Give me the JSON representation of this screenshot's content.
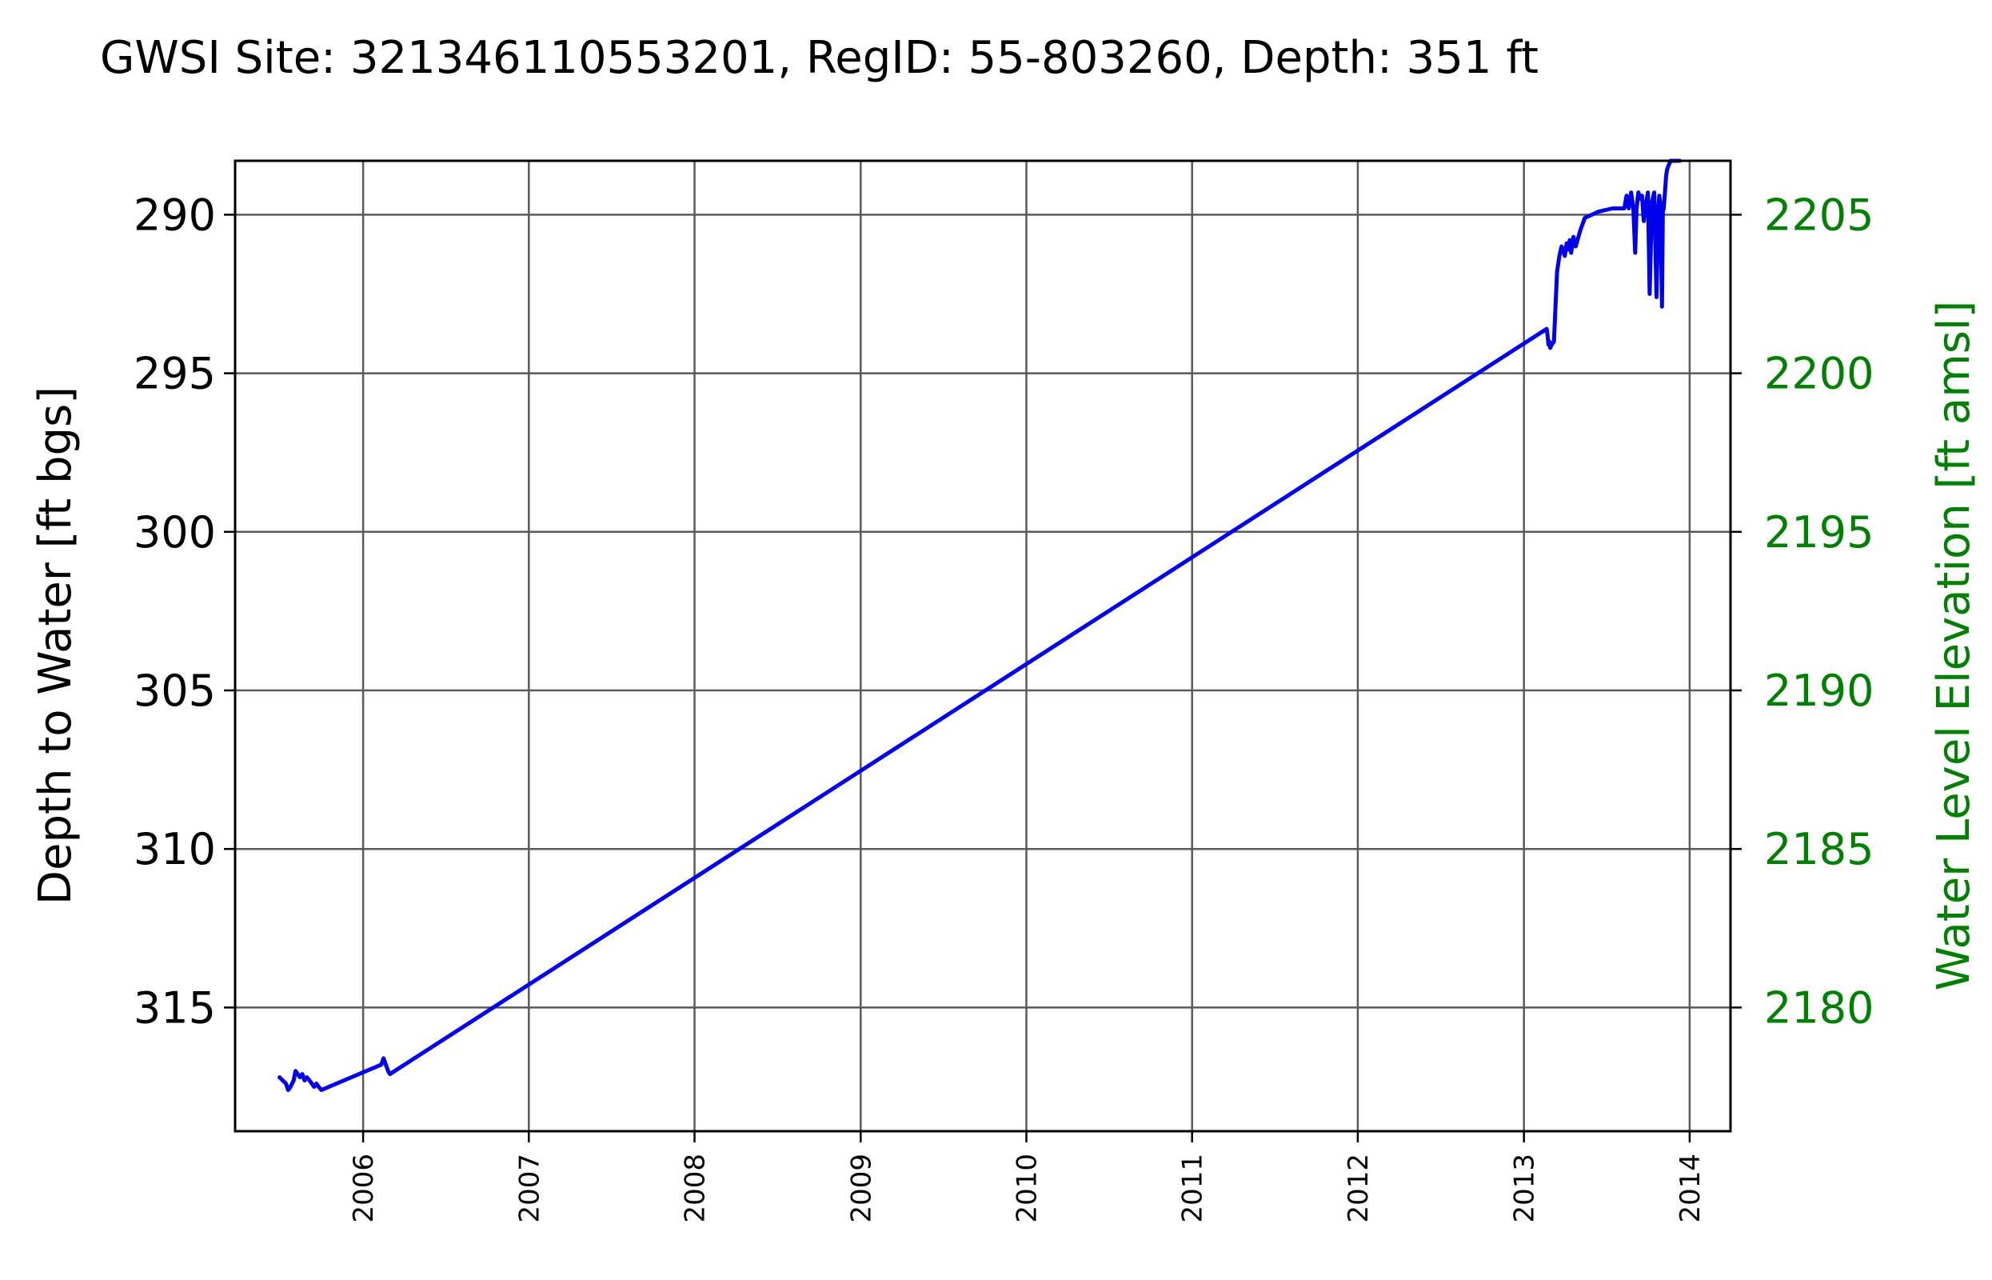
{
  "chart_data": {
    "type": "line",
    "title": "GWSI Site: 321346110553201, RegID: 55-803260, Depth: 351 ft",
    "ylabel": "Depth to Water [ft bgs]",
    "ylabel_right": "Water Level Elevation [ft amsl]",
    "xlabel": "",
    "y_inverted": true,
    "ylim": [
      288.3,
      318.9
    ],
    "yticks": [
      290,
      295,
      300,
      305,
      310,
      315
    ],
    "yticks_right": [
      2205,
      2200,
      2195,
      2190,
      2185,
      2180
    ],
    "right_axis_offset": 2495,
    "xlim": [
      "2005-03-25",
      "2014-04-01"
    ],
    "xticks": [
      "2006",
      "2007",
      "2008",
      "2009",
      "2010",
      "2011",
      "2012",
      "2013",
      "2014"
    ],
    "grid": true,
    "colors": {
      "series": "#0000ee",
      "right_axis": "#008000",
      "grid": "#5a5a5a"
    },
    "series": [
      {
        "x": [
          "2005-07-01",
          "2005-07-08",
          "2005-07-15",
          "2005-07-20",
          "2005-07-25",
          "2005-08-01",
          "2005-08-05",
          "2005-08-10",
          "2005-08-15",
          "2005-08-20",
          "2005-08-25",
          "2005-08-30",
          "2005-09-05",
          "2005-09-10",
          "2005-09-15",
          "2005-09-20",
          "2005-09-25",
          "2005-10-01",
          "2006-02-10",
          "2006-02-15",
          "2006-02-20",
          "2006-02-25",
          "2006-03-01",
          "2013-02-20",
          "2013-02-22",
          "2013-02-24",
          "2013-02-26",
          "2013-02-28",
          "2013-03-03",
          "2013-03-08",
          "2013-03-15",
          "2013-03-20",
          "2013-03-25",
          "2013-04-01",
          "2013-04-05",
          "2013-04-08",
          "2013-04-12",
          "2013-04-15",
          "2013-04-20",
          "2013-04-25",
          "2013-05-05",
          "2013-05-15",
          "2013-06-15",
          "2013-07-15",
          "2013-08-10",
          "2013-08-15",
          "2013-08-20",
          "2013-08-25",
          "2013-08-30",
          "2013-09-03",
          "2013-09-06",
          "2013-09-10",
          "2013-09-14",
          "2013-09-18",
          "2013-09-22",
          "2013-09-26",
          "2013-10-01",
          "2013-10-05",
          "2013-10-10",
          "2013-10-15",
          "2013-10-20",
          "2013-10-24",
          "2013-10-26",
          "2013-10-28",
          "2013-10-30",
          "2013-11-01",
          "2013-11-03",
          "2013-11-05",
          "2013-11-08",
          "2013-11-10",
          "2013-11-12",
          "2013-11-14",
          "2013-11-20",
          "2013-11-30",
          "2013-12-05",
          "2013-12-10"
        ],
        "values": [
          317.2,
          317.3,
          317.4,
          317.6,
          317.5,
          317.3,
          317.0,
          317.1,
          317.2,
          317.1,
          317.3,
          317.2,
          317.3,
          317.4,
          317.5,
          317.4,
          317.5,
          317.6,
          316.8,
          316.6,
          316.8,
          317.0,
          317.1,
          293.6,
          293.8,
          294.1,
          294.0,
          294.2,
          294.1,
          294.0,
          291.8,
          291.3,
          291.0,
          291.3,
          290.9,
          291.1,
          290.8,
          291.2,
          290.7,
          291.0,
          290.5,
          290.1,
          289.9,
          289.8,
          289.8,
          289.4,
          289.8,
          289.3,
          289.8,
          291.2,
          289.8,
          289.3,
          289.5,
          289.4,
          290.2,
          289.7,
          289.3,
          292.5,
          289.6,
          289.3,
          292.6,
          289.8,
          289.4,
          289.6,
          290.9,
          292.9,
          289.9,
          289.8,
          289.2,
          288.8,
          288.6,
          288.5,
          288.3,
          288.3,
          288.3,
          288.3
        ]
      }
    ]
  }
}
